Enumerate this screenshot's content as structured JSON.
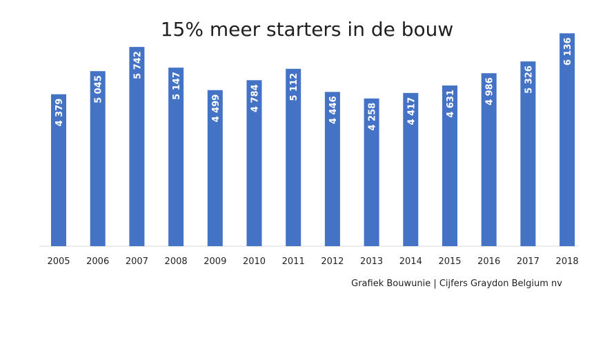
{
  "chart_data": {
    "type": "bar",
    "title": "15% meer starters in de bouw",
    "categories": [
      "2005",
      "2006",
      "2007",
      "2008",
      "2009",
      "2010",
      "2011",
      "2012",
      "2013",
      "2014",
      "2015",
      "2016",
      "2017",
      "2018"
    ],
    "values": [
      4379,
      5045,
      5742,
      5147,
      4499,
      4784,
      5112,
      4446,
      4258,
      4417,
      4631,
      4986,
      5326,
      6136
    ],
    "data_labels": [
      "4 379",
      "5 045",
      "5 742",
      "5 147",
      "4 499",
      "4 784",
      "5 112",
      "4 446",
      "4 258",
      "4 417",
      "4 631",
      "4 986",
      "5 326",
      "6 136"
    ],
    "xlabel": "",
    "ylabel": "",
    "ylim": [
      0,
      6500
    ],
    "grid": false,
    "legend": "none",
    "bar_color": "#4472c4",
    "baseline_color": "#d9d9d9",
    "source": "Grafiek Bouwunie | Cijfers Graydon Belgium nv"
  }
}
